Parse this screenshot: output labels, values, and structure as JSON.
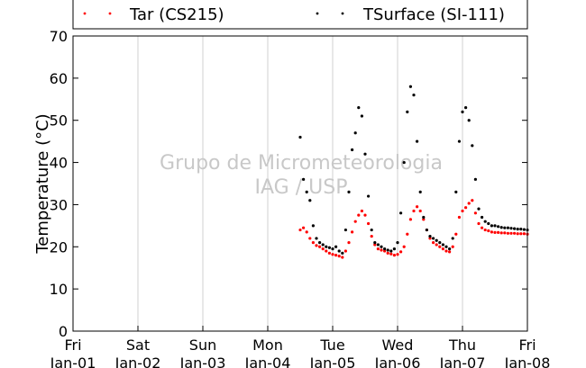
{
  "chart_data": {
    "type": "scatter",
    "title": "",
    "xlabel": "",
    "ylabel": "Temperature (°C)",
    "ylim": [
      0,
      70
    ],
    "yticks": [
      0,
      10,
      20,
      30,
      40,
      50,
      60,
      70
    ],
    "xlim": [
      0,
      7
    ],
    "x_ticks": [
      {
        "pos": 0,
        "day": "Fri",
        "date": "Jan-01"
      },
      {
        "pos": 1,
        "day": "Sat",
        "date": "Jan-02"
      },
      {
        "pos": 2,
        "day": "Sun",
        "date": "Jan-03"
      },
      {
        "pos": 3,
        "day": "Mon",
        "date": "Jan-04"
      },
      {
        "pos": 4,
        "day": "Tue",
        "date": "Jan-05"
      },
      {
        "pos": 5,
        "day": "Wed",
        "date": "Jan-06"
      },
      {
        "pos": 6,
        "day": "Thu",
        "date": "Jan-07"
      },
      {
        "pos": 7,
        "day": "Fri",
        "date": "Jan-08"
      }
    ],
    "grid": "vertical",
    "legend_position": "top",
    "watermark": [
      "Grupo de Micrometeorologia",
      "IAG / USP"
    ],
    "series": [
      {
        "name": "Tar (CS215)",
        "color": "#ff0000",
        "x": [
          3.5,
          3.55,
          3.6,
          3.65,
          3.7,
          3.75,
          3.8,
          3.85,
          3.9,
          3.95,
          4.0,
          4.05,
          4.1,
          4.15,
          4.2,
          4.25,
          4.3,
          4.35,
          4.4,
          4.45,
          4.5,
          4.55,
          4.6,
          4.65,
          4.7,
          4.75,
          4.8,
          4.85,
          4.9,
          4.95,
          5.0,
          5.05,
          5.1,
          5.15,
          5.2,
          5.25,
          5.3,
          5.35,
          5.4,
          5.45,
          5.5,
          5.55,
          5.6,
          5.65,
          5.7,
          5.75,
          5.8,
          5.85,
          5.9,
          5.95,
          6.0,
          6.05,
          6.1,
          6.15,
          6.2,
          6.25,
          6.3,
          6.35,
          6.4,
          6.45,
          6.5,
          6.55,
          6.6,
          6.65,
          6.7,
          6.75,
          6.8,
          6.85,
          6.9,
          6.95,
          7.0
        ],
        "y": [
          24,
          24.5,
          23.5,
          22,
          21,
          20.3,
          20,
          19.5,
          19,
          18.5,
          18.2,
          18,
          17.8,
          17.5,
          19,
          21,
          23.5,
          26,
          27.5,
          28.5,
          27.5,
          25.5,
          22.5,
          20.5,
          19.5,
          19.2,
          19,
          18.5,
          18.3,
          18,
          18.2,
          18.8,
          20,
          23,
          26.5,
          28.5,
          29.5,
          28.5,
          26.5,
          24,
          22,
          21,
          20.5,
          20,
          19.5,
          19,
          18.8,
          20,
          23,
          27,
          28.5,
          29.3,
          30.3,
          31,
          28,
          25.5,
          24.5,
          24,
          23.8,
          23.5,
          23.4,
          23.4,
          23.3,
          23.3,
          23.2,
          23.2,
          23.2,
          23.1,
          23.1,
          23.1,
          23.0
        ]
      },
      {
        "name": "TSurface (SI-111)",
        "color": "#000000",
        "x": [
          3.5,
          3.55,
          3.6,
          3.65,
          3.7,
          3.75,
          3.8,
          3.85,
          3.9,
          3.95,
          4.0,
          4.05,
          4.1,
          4.15,
          4.2,
          4.25,
          4.3,
          4.35,
          4.4,
          4.45,
          4.5,
          4.55,
          4.6,
          4.65,
          4.7,
          4.75,
          4.8,
          4.85,
          4.9,
          4.95,
          5.0,
          5.05,
          5.1,
          5.15,
          5.2,
          5.25,
          5.3,
          5.35,
          5.4,
          5.45,
          5.5,
          5.55,
          5.6,
          5.65,
          5.7,
          5.75,
          5.8,
          5.85,
          5.9,
          5.95,
          6.0,
          6.05,
          6.1,
          6.15,
          6.2,
          6.25,
          6.3,
          6.35,
          6.4,
          6.45,
          6.5,
          6.55,
          6.6,
          6.65,
          6.7,
          6.75,
          6.8,
          6.85,
          6.9,
          6.95,
          7.0
        ],
        "y": [
          46,
          36,
          33,
          31,
          25,
          22,
          21,
          20.5,
          20,
          19.8,
          19.5,
          20,
          19,
          18.5,
          24,
          33,
          43,
          47,
          53,
          51,
          42,
          32,
          24,
          21,
          20.5,
          20,
          19.5,
          19.2,
          19,
          19.5,
          21,
          28,
          40,
          52,
          58,
          56,
          45,
          33,
          27,
          24,
          22.5,
          22,
          21.5,
          21,
          20.5,
          20,
          19.5,
          22,
          33,
          45,
          52,
          53,
          50,
          44,
          36,
          29,
          27,
          26,
          25.5,
          25,
          25,
          24.8,
          24.6,
          24.5,
          24.5,
          24.4,
          24.3,
          24.2,
          24.2,
          24.1,
          24.0
        ]
      }
    ]
  }
}
